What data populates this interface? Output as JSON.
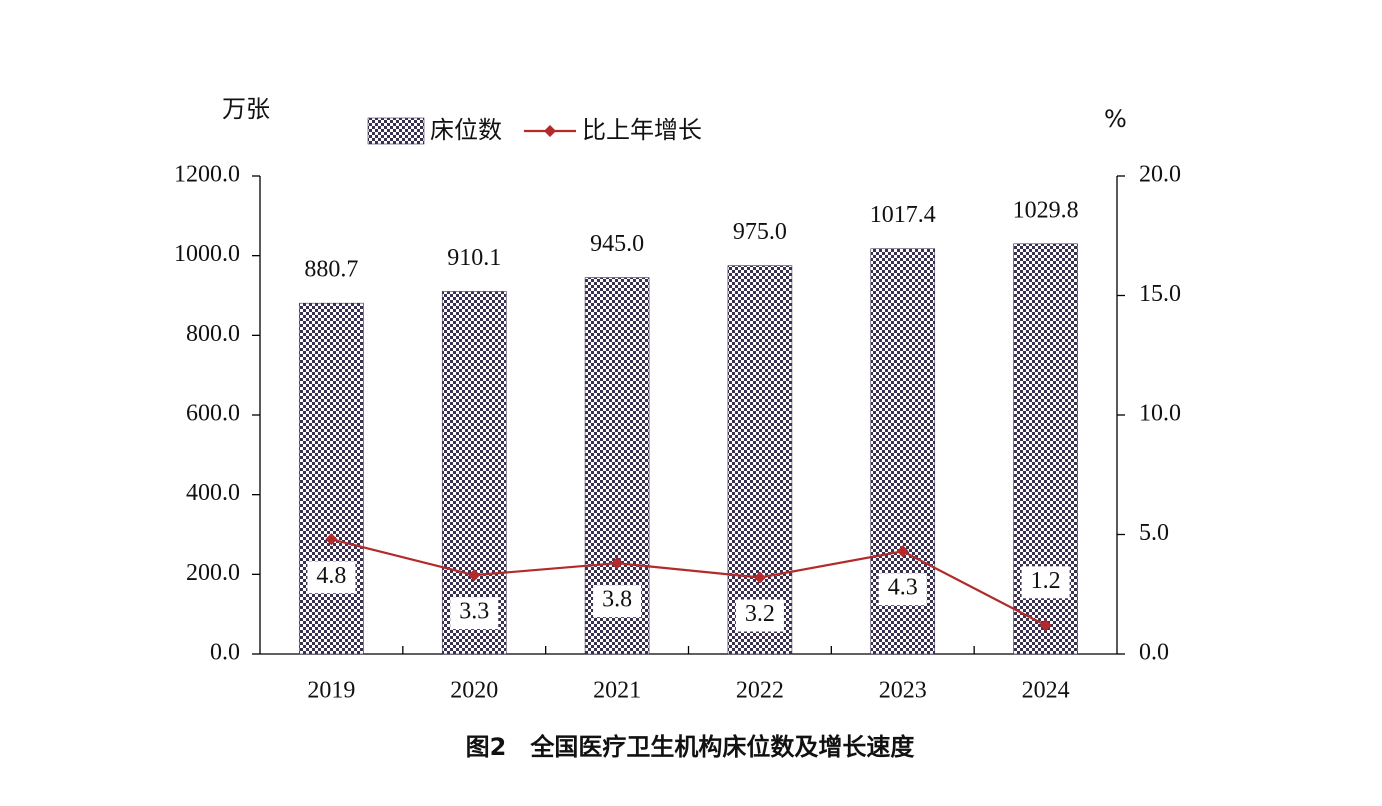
{
  "chart_data": {
    "type": "bar-line",
    "title": "图2　全国医疗卫生机构床位数及增长速度",
    "y_label": "万张",
    "y2_label": "%",
    "categories": [
      "2019",
      "2020",
      "2021",
      "2022",
      "2023",
      "2024"
    ],
    "series": [
      {
        "name": "床位数",
        "type": "bar",
        "color": "#3a3050",
        "values": [
          880.7,
          910.1,
          945.0,
          975.0,
          1017.4,
          1029.8
        ],
        "value_labels": [
          "880.7",
          "910.1",
          "945.0",
          "975.0",
          "1017.4",
          "1029.8"
        ]
      },
      {
        "name": "比上年增长",
        "type": "line",
        "axis": "y2",
        "color": "#b22a2a",
        "values": [
          4.8,
          3.3,
          3.8,
          3.2,
          4.3,
          1.2
        ]
      }
    ],
    "ylim": [
      0,
      1200
    ],
    "yticks": [
      {
        "value": 0,
        "label": "0.0"
      },
      {
        "value": 200,
        "label": "200.0"
      },
      {
        "value": 400,
        "label": "400.0"
      },
      {
        "value": 600,
        "label": "600.0"
      },
      {
        "value": 800,
        "label": "800.0"
      },
      {
        "value": 1000,
        "label": "1000.0"
      },
      {
        "value": 1200,
        "label": "1200.0"
      }
    ],
    "y2lim": [
      0,
      20
    ],
    "y2ticks": [
      {
        "value": 0,
        "label": "0.0"
      },
      {
        "value": 5,
        "label": "5.0"
      },
      {
        "value": 10,
        "label": "10.0"
      },
      {
        "value": 15,
        "label": "15.0"
      },
      {
        "value": 20,
        "label": "20.0"
      }
    ],
    "legend": "top"
  }
}
